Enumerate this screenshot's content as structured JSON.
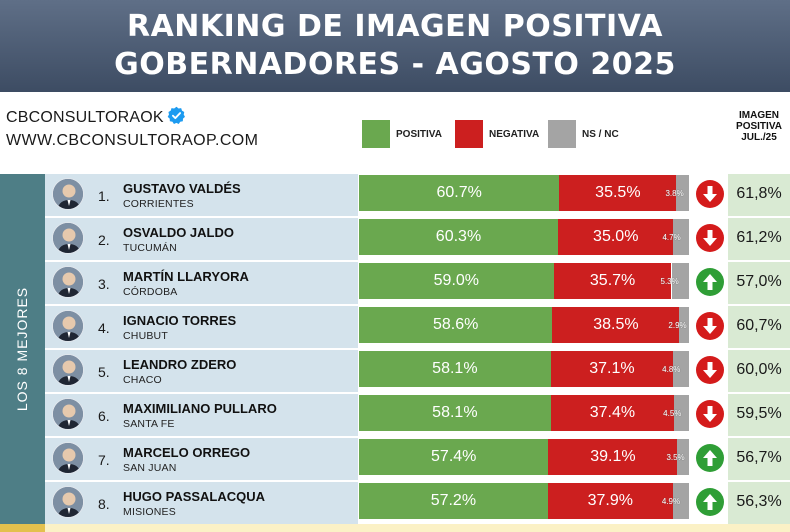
{
  "header": {
    "title_line1": "RANKING DE IMAGEN POSITIVA",
    "title_line2": "GOBERNADORES - AGOSTO 2025"
  },
  "brand": {
    "handle": "CBCONSULTORAOK",
    "website": "WWW.CBCONSULTORAOP.COM"
  },
  "legend": {
    "positive": {
      "label": "POSITIVA",
      "color": "#6aa84f"
    },
    "negative": {
      "label": "NEGATIVA",
      "color": "#cc1f1f"
    },
    "ns": {
      "label": "NS / NC",
      "color": "#a4a4a4"
    }
  },
  "prev_header": {
    "line1": "IMAGEN",
    "line2": "POSITIVA",
    "line3": "JUL./25"
  },
  "side_label": "LOS 8 MEJORES",
  "colors": {
    "up": "#2f9e36",
    "down": "#d41b1b",
    "row_bg": "#d4e3ec",
    "prev_bg": "#d9ead3"
  },
  "chart_data": {
    "type": "bar",
    "stacked": true,
    "orientation": "horizontal",
    "title": "RANKING DE IMAGEN POSITIVA GOBERNADORES - AGOSTO 2025",
    "categories": [
      "GUSTAVO VALDÉS",
      "OSVALDO JALDO",
      "MARTÍN LLARYORA",
      "IGNACIO TORRES",
      "LEANDRO ZDERO",
      "MAXIMILIANO PULLARO",
      "MARCELO ORREGO",
      "HUGO PASSALACQUA"
    ],
    "series": [
      {
        "name": "POSITIVA",
        "values": [
          60.7,
          60.3,
          59.0,
          58.6,
          58.1,
          58.1,
          57.4,
          57.2
        ]
      },
      {
        "name": "NEGATIVA",
        "values": [
          35.5,
          35.0,
          35.7,
          38.5,
          37.1,
          37.4,
          39.1,
          37.9
        ]
      },
      {
        "name": "NS / NC",
        "values": [
          3.8,
          4.7,
          5.3,
          2.9,
          4.8,
          4.5,
          3.5,
          4.9
        ]
      }
    ],
    "rows": [
      {
        "rank": "1.",
        "name": "GUSTAVO VALDÉS",
        "province": "CORRIENTES",
        "pos": 60.7,
        "neg": 35.5,
        "ns": 3.8,
        "pos_label": "60.7%",
        "neg_label": "35.5%",
        "ns_label": "3.8%",
        "trend": "down",
        "prev": "61,8%"
      },
      {
        "rank": "2.",
        "name": "OSVALDO JALDO",
        "province": "TUCUMÁN",
        "pos": 60.3,
        "neg": 35.0,
        "ns": 4.7,
        "pos_label": "60.3%",
        "neg_label": "35.0%",
        "ns_label": "4.7%",
        "trend": "down",
        "prev": "61,2%"
      },
      {
        "rank": "3.",
        "name": "MARTÍN LLARYORA",
        "province": "CÓRDOBA",
        "pos": 59.0,
        "neg": 35.7,
        "ns": 5.3,
        "pos_label": "59.0%",
        "neg_label": "35.7%",
        "ns_label": "5.3%",
        "trend": "up",
        "prev": "57,0%"
      },
      {
        "rank": "4.",
        "name": "IGNACIO TORRES",
        "province": "CHUBUT",
        "pos": 58.6,
        "neg": 38.5,
        "ns": 2.9,
        "pos_label": "58.6%",
        "neg_label": "38.5%",
        "ns_label": "2.9%",
        "trend": "down",
        "prev": "60,7%"
      },
      {
        "rank": "5.",
        "name": "LEANDRO ZDERO",
        "province": "CHACO",
        "pos": 58.1,
        "neg": 37.1,
        "ns": 4.8,
        "pos_label": "58.1%",
        "neg_label": "37.1%",
        "ns_label": "4.8%",
        "trend": "down",
        "prev": "60,0%"
      },
      {
        "rank": "6.",
        "name": "MAXIMILIANO PULLARO",
        "province": "SANTA FE",
        "pos": 58.1,
        "neg": 37.4,
        "ns": 4.5,
        "pos_label": "58.1%",
        "neg_label": "37.4%",
        "ns_label": "4.5%",
        "trend": "down",
        "prev": "59,5%"
      },
      {
        "rank": "7.",
        "name": "MARCELO ORREGO",
        "province": "SAN JUAN",
        "pos": 57.4,
        "neg": 39.1,
        "ns": 3.5,
        "pos_label": "57.4%",
        "neg_label": "39.1%",
        "ns_label": "3.5%",
        "trend": "up",
        "prev": "56,7%"
      },
      {
        "rank": "8.",
        "name": "HUGO PASSALACQUA",
        "province": "MISIONES",
        "pos": 57.2,
        "neg": 37.9,
        "ns": 4.9,
        "pos_label": "57.2%",
        "neg_label": "37.9%",
        "ns_label": "4.9%",
        "trend": "up",
        "prev": "56,3%"
      }
    ],
    "xlim": [
      0,
      100
    ],
    "legend_position": "top",
    "grid": false
  }
}
